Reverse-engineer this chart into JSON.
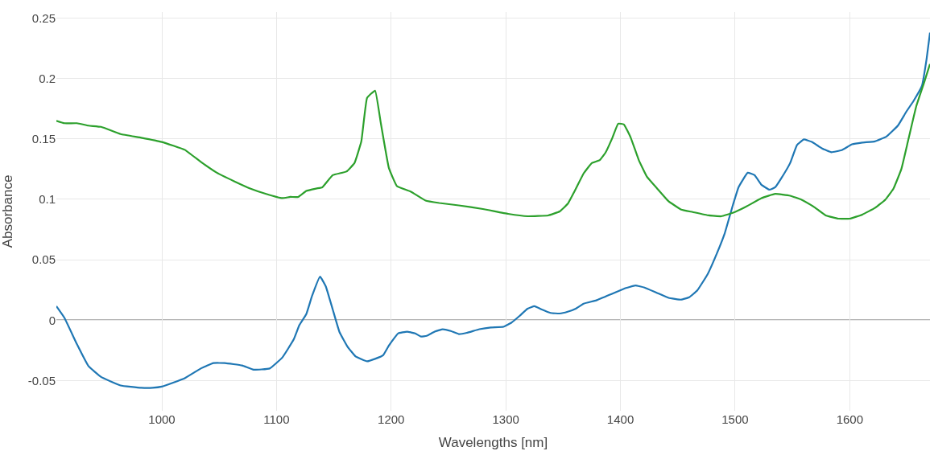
{
  "chart_data": {
    "type": "line",
    "xlabel": "Wavelengths [nm]",
    "ylabel": "Absorbance",
    "xlim": [
      908,
      1670
    ],
    "xticks": [
      1000,
      1100,
      1200,
      1300,
      1400,
      1500,
      1600
    ],
    "ylim": [
      -0.075,
      0.255
    ],
    "yticks": [
      -0.05,
      0,
      0.05,
      0.1,
      0.15,
      0.2,
      0.25
    ],
    "grid": true,
    "marker": "none",
    "line_style": "solid",
    "ref_lines": [
      {
        "axis": "y",
        "value": 0,
        "color": "#6b6b6b"
      }
    ],
    "series": [
      {
        "color": "#1f77b4",
        "x": [
          908,
          915,
          926,
          936,
          947,
          964,
          982,
          992,
          1000,
          1020,
          1034,
          1045,
          1055,
          1070,
          1080,
          1094,
          1105,
          1115,
          1120,
          1126,
          1131,
          1138,
          1143,
          1149,
          1155,
          1162,
          1169,
          1179,
          1186,
          1193,
          1198,
          1206,
          1214,
          1221,
          1226,
          1231,
          1238,
          1245,
          1252,
          1259,
          1266,
          1277,
          1287,
          1298,
          1305,
          1312,
          1319,
          1325,
          1331,
          1339,
          1347,
          1354,
          1361,
          1368,
          1379,
          1393,
          1403,
          1413,
          1421,
          1432,
          1442,
          1453,
          1460,
          1467,
          1476,
          1484,
          1491,
          1498,
          1503,
          1511,
          1517,
          1523,
          1530,
          1535,
          1540,
          1548,
          1554,
          1560,
          1567,
          1576,
          1584,
          1593,
          1602,
          1611,
          1622,
          1632,
          1642,
          1649,
          1656,
          1663,
          1667,
          1670
        ],
        "values": [
          0.0116,
          0.002,
          -0.02,
          -0.038,
          -0.047,
          -0.054,
          -0.056,
          -0.056,
          -0.055,
          -0.048,
          -0.04,
          -0.0355,
          -0.0355,
          -0.0375,
          -0.041,
          -0.04,
          -0.031,
          -0.016,
          -0.004,
          0.005,
          0.02,
          0.036,
          0.028,
          0.009,
          -0.01,
          -0.022,
          -0.03,
          -0.034,
          -0.032,
          -0.029,
          -0.021,
          -0.011,
          -0.0095,
          -0.011,
          -0.0135,
          -0.013,
          -0.0095,
          -0.0075,
          -0.009,
          -0.0115,
          -0.0105,
          -0.0075,
          -0.006,
          -0.0055,
          -0.002,
          0.0035,
          0.0095,
          0.0116,
          0.009,
          0.006,
          0.0055,
          0.007,
          0.0095,
          0.0137,
          0.0164,
          0.022,
          0.026,
          0.0287,
          0.027,
          0.0225,
          0.0185,
          0.017,
          0.019,
          0.0246,
          0.038,
          0.055,
          0.072,
          0.095,
          0.11,
          0.122,
          0.12,
          0.112,
          0.108,
          0.11,
          0.117,
          0.13,
          0.145,
          0.1496,
          0.1475,
          0.142,
          0.139,
          0.1407,
          0.1455,
          0.147,
          0.148,
          0.152,
          0.161,
          0.172,
          0.182,
          0.194,
          0.216,
          0.238
        ]
      },
      {
        "color": "#2ca02c",
        "x": [
          908,
          915,
          926,
          936,
          947,
          964,
          982,
          1000,
          1020,
          1034,
          1048,
          1063,
          1077,
          1091,
          1105,
          1112,
          1119,
          1126,
          1135,
          1140,
          1149,
          1161,
          1168,
          1174,
          1179,
          1186,
          1191,
          1198,
          1205,
          1217,
          1230,
          1242,
          1259,
          1280,
          1302,
          1319,
          1337,
          1347,
          1354,
          1361,
          1368,
          1375,
          1382,
          1387,
          1393,
          1398,
          1403,
          1409,
          1416,
          1423,
          1432,
          1442,
          1453,
          1463,
          1477,
          1488,
          1498,
          1509,
          1523,
          1535,
          1548,
          1558,
          1569,
          1579,
          1590,
          1600,
          1611,
          1622,
          1631,
          1638,
          1645,
          1651,
          1658,
          1665,
          1670
        ],
        "values": [
          0.165,
          0.163,
          0.163,
          0.161,
          0.16,
          0.154,
          0.151,
          0.1475,
          0.141,
          0.131,
          0.122,
          0.115,
          0.109,
          0.1045,
          0.101,
          0.102,
          0.102,
          0.107,
          0.109,
          0.11,
          0.12,
          0.123,
          0.13,
          0.148,
          0.184,
          0.19,
          0.163,
          0.126,
          0.111,
          0.1065,
          0.099,
          0.097,
          0.095,
          0.092,
          0.088,
          0.086,
          0.0867,
          0.09,
          0.0963,
          0.1086,
          0.1216,
          0.13,
          0.1325,
          0.1387,
          0.151,
          0.1626,
          0.162,
          0.151,
          0.1325,
          0.1189,
          0.109,
          0.0984,
          0.0915,
          0.0895,
          0.0867,
          0.086,
          0.0888,
          0.0936,
          0.101,
          0.1045,
          0.103,
          0.0997,
          0.0936,
          0.0867,
          0.084,
          0.084,
          0.0874,
          0.0929,
          0.0997,
          0.1086,
          0.125,
          0.149,
          0.177,
          0.197,
          0.212
        ]
      }
    ]
  }
}
